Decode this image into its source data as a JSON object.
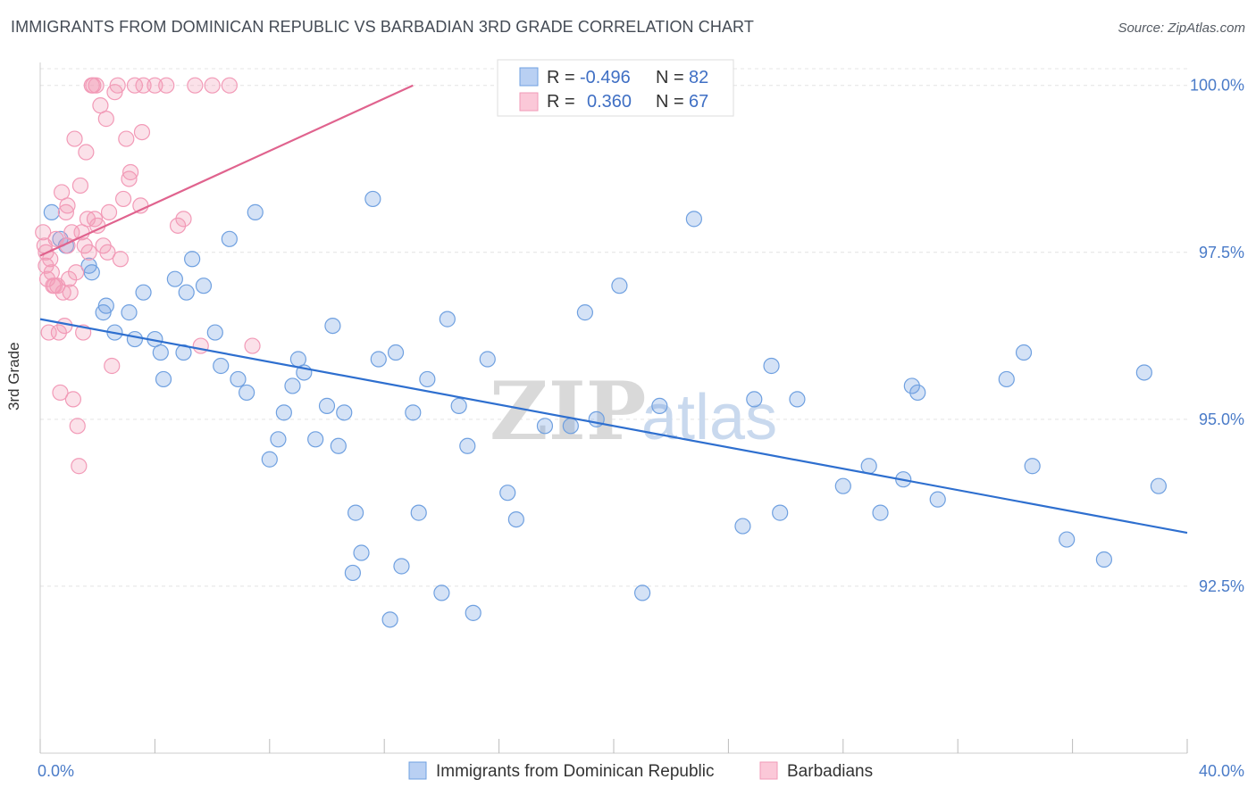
{
  "header": {
    "title": "IMMIGRANTS FROM DOMINICAN REPUBLIC VS BARBADIAN 3RD GRADE CORRELATION CHART",
    "source": "Source: ZipAtlas.com"
  },
  "watermark": {
    "zip": "ZIP",
    "atlas": "atlas"
  },
  "chart_data": {
    "type": "scatter",
    "title": "IMMIGRANTS FROM DOMINICAN REPUBLIC VS BARBADIAN 3RD GRADE CORRELATION CHART",
    "xlabel": "",
    "ylabel": "3rd Grade",
    "xlim": [
      0,
      40
    ],
    "ylim": [
      90.0,
      100.25
    ],
    "x_tick_labels": [
      "0.0%",
      "40.0%"
    ],
    "y_ticks": [
      92.5,
      95.0,
      97.5,
      100.0
    ],
    "y_tick_labels": [
      "92.5%",
      "95.0%",
      "97.5%",
      "100.0%"
    ],
    "grid": true,
    "legend_placement": "top-center",
    "legend": [
      {
        "r_label": "R =",
        "r_value": "-0.496",
        "n_label": "N =",
        "n_value": "82"
      },
      {
        "r_label": "R =",
        "r_value": "0.360",
        "n_label": "N =",
        "n_value": "67"
      }
    ],
    "series": [
      {
        "name": "Immigrants from Dominican Republic",
        "color": "#6fa0e0",
        "line_color": "#2e6fcf",
        "trend": {
          "x": [
            0,
            40
          ],
          "y": [
            96.5,
            93.3
          ]
        },
        "points": [
          [
            0.4,
            98.1
          ],
          [
            0.7,
            97.7
          ],
          [
            0.9,
            97.6
          ],
          [
            1.7,
            97.3
          ],
          [
            1.8,
            97.2
          ],
          [
            2.3,
            96.7
          ],
          [
            2.2,
            96.6
          ],
          [
            3.6,
            96.9
          ],
          [
            3.1,
            96.6
          ],
          [
            2.6,
            96.3
          ],
          [
            3.3,
            96.2
          ],
          [
            4.0,
            96.2
          ],
          [
            4.2,
            96.0
          ],
          [
            4.3,
            95.6
          ],
          [
            4.7,
            97.1
          ],
          [
            5.1,
            96.9
          ],
          [
            5.0,
            96.0
          ],
          [
            5.3,
            97.4
          ],
          [
            5.7,
            97.0
          ],
          [
            6.1,
            96.3
          ],
          [
            6.6,
            97.7
          ],
          [
            6.3,
            95.8
          ],
          [
            6.9,
            95.6
          ],
          [
            7.2,
            95.4
          ],
          [
            7.5,
            98.1
          ],
          [
            8.0,
            94.4
          ],
          [
            8.3,
            94.7
          ],
          [
            8.5,
            95.1
          ],
          [
            8.8,
            95.5
          ],
          [
            9.0,
            95.9
          ],
          [
            9.2,
            95.7
          ],
          [
            9.6,
            94.7
          ],
          [
            10.0,
            95.2
          ],
          [
            10.2,
            96.4
          ],
          [
            10.4,
            94.6
          ],
          [
            10.6,
            95.1
          ],
          [
            11.0,
            93.6
          ],
          [
            11.2,
            93.0
          ],
          [
            10.9,
            92.7
          ],
          [
            11.6,
            98.3
          ],
          [
            11.8,
            95.9
          ],
          [
            12.2,
            92.0
          ],
          [
            12.4,
            96.0
          ],
          [
            12.6,
            92.8
          ],
          [
            13.0,
            95.1
          ],
          [
            13.2,
            93.6
          ],
          [
            13.5,
            95.6
          ],
          [
            14.0,
            92.4
          ],
          [
            14.2,
            96.5
          ],
          [
            14.6,
            95.2
          ],
          [
            14.9,
            94.6
          ],
          [
            15.1,
            92.1
          ],
          [
            15.6,
            95.9
          ],
          [
            16.3,
            93.9
          ],
          [
            16.6,
            93.5
          ],
          [
            17.6,
            94.9
          ],
          [
            18.5,
            94.9
          ],
          [
            19.0,
            96.6
          ],
          [
            19.4,
            95.0
          ],
          [
            20.2,
            97.0
          ],
          [
            21.0,
            92.4
          ],
          [
            21.6,
            95.2
          ],
          [
            22.8,
            98.0
          ],
          [
            24.5,
            93.4
          ],
          [
            24.9,
            95.3
          ],
          [
            25.5,
            95.8
          ],
          [
            25.8,
            93.6
          ],
          [
            26.4,
            95.3
          ],
          [
            28.0,
            94.0
          ],
          [
            28.9,
            94.3
          ],
          [
            29.3,
            93.6
          ],
          [
            30.1,
            94.1
          ],
          [
            30.4,
            95.5
          ],
          [
            30.6,
            95.4
          ],
          [
            31.3,
            93.8
          ],
          [
            33.7,
            95.6
          ],
          [
            34.3,
            96.0
          ],
          [
            34.6,
            94.3
          ],
          [
            35.8,
            93.2
          ],
          [
            37.1,
            92.9
          ],
          [
            38.5,
            95.7
          ],
          [
            39.0,
            94.0
          ]
        ]
      },
      {
        "name": "Barbadians",
        "color": "#f29ab7",
        "line_color": "#e0638e",
        "trend": {
          "x": [
            0,
            13
          ],
          "y": [
            97.45,
            100.0
          ]
        },
        "points": [
          [
            0.1,
            97.8
          ],
          [
            0.15,
            97.6
          ],
          [
            0.2,
            97.5
          ],
          [
            0.2,
            97.3
          ],
          [
            0.25,
            97.1
          ],
          [
            0.3,
            96.3
          ],
          [
            0.35,
            97.4
          ],
          [
            0.4,
            97.2
          ],
          [
            0.45,
            97.0
          ],
          [
            0.5,
            97.0
          ],
          [
            0.55,
            97.7
          ],
          [
            0.6,
            97.0
          ],
          [
            0.65,
            96.3
          ],
          [
            0.7,
            95.4
          ],
          [
            0.75,
            98.4
          ],
          [
            0.8,
            96.9
          ],
          [
            0.85,
            96.4
          ],
          [
            0.9,
            98.1
          ],
          [
            0.95,
            97.6
          ],
          [
            1.0,
            97.1
          ],
          [
            1.05,
            96.9
          ],
          [
            1.1,
            97.8
          ],
          [
            1.15,
            95.3
          ],
          [
            1.2,
            99.2
          ],
          [
            1.3,
            94.9
          ],
          [
            1.35,
            94.3
          ],
          [
            1.4,
            98.5
          ],
          [
            1.45,
            97.8
          ],
          [
            1.5,
            96.3
          ],
          [
            1.55,
            97.6
          ],
          [
            1.6,
            99.0
          ],
          [
            1.65,
            98.0
          ],
          [
            1.7,
            97.5
          ],
          [
            1.8,
            100.0
          ],
          [
            1.85,
            100.0
          ],
          [
            1.9,
            98.0
          ],
          [
            1.95,
            100.0
          ],
          [
            2.0,
            97.9
          ],
          [
            2.1,
            99.7
          ],
          [
            2.2,
            97.6
          ],
          [
            2.3,
            99.5
          ],
          [
            2.35,
            97.5
          ],
          [
            2.4,
            98.1
          ],
          [
            2.5,
            95.8
          ],
          [
            2.6,
            99.9
          ],
          [
            2.7,
            100.0
          ],
          [
            2.8,
            97.4
          ],
          [
            3.0,
            99.2
          ],
          [
            3.1,
            98.6
          ],
          [
            3.15,
            98.7
          ],
          [
            3.3,
            100.0
          ],
          [
            3.5,
            98.2
          ],
          [
            3.55,
            99.3
          ],
          [
            3.6,
            100.0
          ],
          [
            4.0,
            100.0
          ],
          [
            4.4,
            100.0
          ],
          [
            4.8,
            97.9
          ],
          [
            5.0,
            98.0
          ],
          [
            5.4,
            100.0
          ],
          [
            5.6,
            96.1
          ],
          [
            6.0,
            100.0
          ],
          [
            6.6,
            100.0
          ],
          [
            7.4,
            96.1
          ],
          [
            2.9,
            98.3
          ],
          [
            1.25,
            97.2
          ],
          [
            0.95,
            98.2
          ],
          [
            19.0,
            100.0
          ]
        ]
      }
    ]
  }
}
